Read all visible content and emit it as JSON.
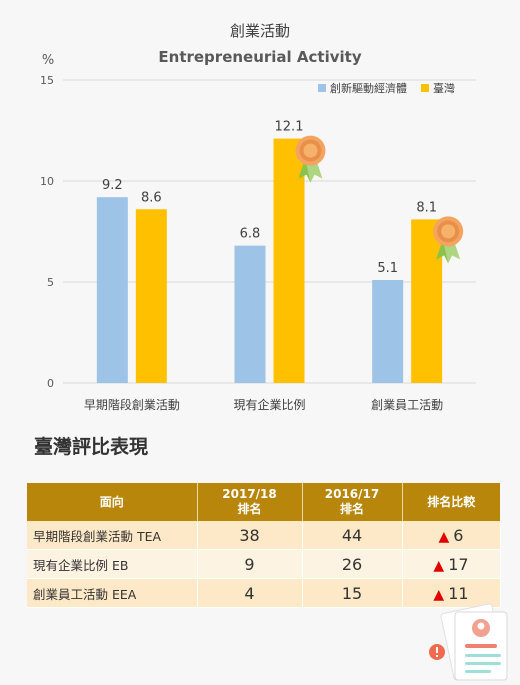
{
  "chart_data": {
    "type": "bar",
    "title": "創業活動",
    "subtitle": "Entrepreneurial Activity",
    "ylabel": "%",
    "ylim": [
      0,
      15
    ],
    "yticks": [
      0,
      5,
      10,
      15
    ],
    "categories": [
      "早期階段創業活動",
      "現有企業比例",
      "創業員工活動"
    ],
    "series": [
      {
        "name": "創新驅動經濟體",
        "color": "#9dc3e6",
        "values": [
          9.2,
          6.8,
          5.1
        ]
      },
      {
        "name": "臺灣",
        "color": "#ffc000",
        "values": [
          8.6,
          12.1,
          8.1
        ]
      }
    ],
    "data_labels": [
      "9.2",
      "8.6",
      "6.8",
      "12.1",
      "5.1",
      "8.1"
    ],
    "grid": true,
    "legend_position": "top-right",
    "medal_icon": "award-medal-icon"
  },
  "section_title": "臺灣評比表現",
  "table": {
    "headers": {
      "col1": "面向",
      "col2_line1": "2017/18",
      "col2_line2": "排名",
      "col3_line1": "2016/17",
      "col3_line2": "排名",
      "col4": "排名比較"
    },
    "rows": [
      {
        "name": "早期階段創業活動 TEA",
        "rank_2017": "38",
        "rank_2016": "44",
        "change": "6",
        "trend": "up"
      },
      {
        "name": "現有企業比例 EB",
        "rank_2017": "9",
        "rank_2016": "26",
        "change": "17",
        "trend": "up"
      },
      {
        "name": "創業員工活動 EEA",
        "rank_2017": "4",
        "rank_2016": "15",
        "change": "11",
        "trend": "up"
      }
    ],
    "up_arrow": "▲",
    "header_color": "#b8860b",
    "up_color": "#e00000"
  },
  "decoration_icon": "resume-document-icon"
}
